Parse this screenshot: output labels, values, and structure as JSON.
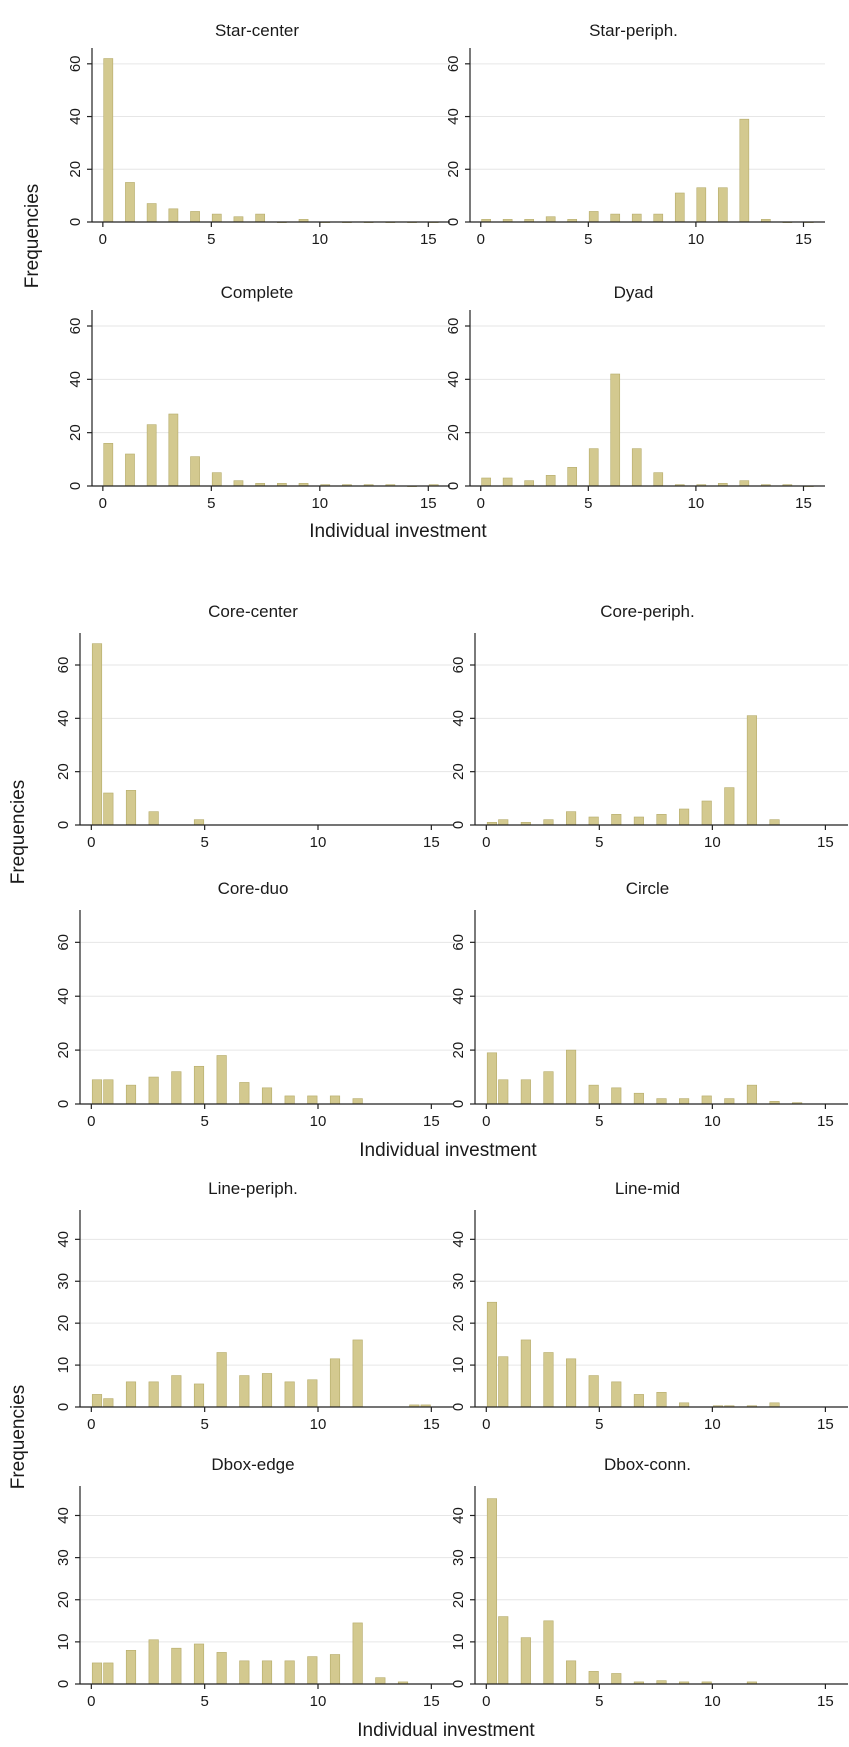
{
  "chart_data": [
    {
      "type": "bar",
      "ylabel": "Frequencies",
      "xlabel": "Individual investment",
      "xlim": [
        -0.5,
        16
      ],
      "xticks": [
        0,
        5,
        10,
        15
      ],
      "ylim": [
        0,
        66
      ],
      "yticks": [
        0,
        20,
        40,
        60
      ],
      "grid": true,
      "panels": [
        {
          "title": "Star-center",
          "x": [
            0,
            1,
            2,
            3,
            4,
            5,
            6,
            7,
            8,
            9,
            10,
            11,
            12,
            13,
            14,
            15
          ],
          "values": [
            62,
            15,
            7,
            5,
            4,
            3,
            2,
            3,
            0,
            1,
            0,
            0,
            0,
            0,
            0,
            0
          ]
        },
        {
          "title": "Star-periph.",
          "x": [
            0,
            1,
            2,
            3,
            4,
            5,
            6,
            7,
            8,
            9,
            10,
            11,
            12,
            13,
            14,
            15
          ],
          "values": [
            1,
            1,
            1,
            2,
            1,
            4,
            3,
            3,
            3,
            11,
            13,
            13,
            39,
            1,
            0,
            0
          ]
        },
        {
          "title": "Complete",
          "x": [
            0,
            1,
            2,
            3,
            4,
            5,
            6,
            7,
            8,
            9,
            10,
            11,
            12,
            13,
            14,
            15
          ],
          "values": [
            16,
            12,
            23,
            27,
            11,
            5,
            2,
            1,
            1,
            1,
            0.5,
            0.5,
            0.5,
            0.5,
            0,
            0.5
          ]
        },
        {
          "title": "Dyad",
          "x": [
            0,
            1,
            2,
            3,
            4,
            5,
            6,
            7,
            8,
            9,
            10,
            11,
            12,
            13,
            14,
            15
          ],
          "values": [
            3,
            3,
            2,
            4,
            7,
            14,
            42,
            14,
            5,
            0.5,
            0.5,
            1,
            2,
            0.5,
            0.5,
            0
          ]
        }
      ]
    },
    {
      "type": "bar",
      "ylabel": "Frequencies",
      "xlabel": "Individual investment",
      "xlim": [
        -0.5,
        16
      ],
      "xticks": [
        0,
        5,
        10,
        15
      ],
      "ylim": [
        0,
        72
      ],
      "yticks": [
        0,
        20,
        40,
        60
      ],
      "grid": true,
      "panels": [
        {
          "title": "Core-center",
          "x": [
            0,
            0.5,
            1.5,
            2.5,
            4.5
          ],
          "values": [
            68,
            12,
            13,
            5,
            2
          ]
        },
        {
          "title": "Core-periph.",
          "x": [
            0,
            0.5,
            1.5,
            2.5,
            3.5,
            4.5,
            5.5,
            6.5,
            7.5,
            8.5,
            9.5,
            10.5,
            11.5,
            12.5
          ],
          "values": [
            1,
            2,
            1,
            2,
            5,
            3,
            4,
            3,
            4,
            6,
            9,
            14,
            41,
            2
          ]
        },
        {
          "title": "Core-duo",
          "x": [
            0,
            0.5,
            1.5,
            2.5,
            3.5,
            4.5,
            5.5,
            6.5,
            7.5,
            8.5,
            9.5,
            10.5,
            11.5
          ],
          "values": [
            9,
            9,
            7,
            10,
            12,
            14,
            18,
            8,
            6,
            3,
            3,
            3,
            2
          ]
        },
        {
          "title": "Circle",
          "x": [
            0,
            0.5,
            1.5,
            2.5,
            3.5,
            4.5,
            5.5,
            6.5,
            7.5,
            8.5,
            9.5,
            10.5,
            11.5,
            12.5,
            13.5
          ],
          "values": [
            19,
            9,
            9,
            12,
            20,
            7,
            6,
            4,
            2,
            2,
            3,
            2,
            7,
            1,
            0.5
          ]
        }
      ]
    },
    {
      "type": "bar",
      "ylabel": "Frequencies",
      "xlabel": "Individual investment",
      "xlim": [
        -0.5,
        16
      ],
      "xticks": [
        0,
        5,
        10,
        15
      ],
      "ylim": [
        0,
        47
      ],
      "yticks": [
        0,
        10,
        20,
        30,
        40
      ],
      "grid": true,
      "panels": [
        {
          "title": "Line-periph.",
          "x": [
            0,
            0.5,
            1.5,
            2.5,
            3.5,
            4.5,
            5.5,
            6.5,
            7.5,
            8.5,
            9.5,
            10.5,
            11.5,
            14,
            14.5
          ],
          "values": [
            3,
            2,
            6,
            6,
            7.5,
            5.5,
            13,
            7.5,
            8,
            6,
            6.5,
            11.5,
            16,
            0.5,
            0.5
          ]
        },
        {
          "title": "Line-mid",
          "x": [
            0,
            0.5,
            1.5,
            2.5,
            3.5,
            4.5,
            5.5,
            6.5,
            7.5,
            8.5,
            10,
            10.5,
            11.5,
            12.5
          ],
          "values": [
            25,
            12,
            16,
            13,
            11.5,
            7.5,
            6,
            3,
            3.5,
            1,
            0.3,
            0.3,
            0.3,
            1
          ]
        },
        {
          "title": "Dbox-edge",
          "x": [
            0,
            0.5,
            1.5,
            2.5,
            3.5,
            4.5,
            5.5,
            6.5,
            7.5,
            8.5,
            9.5,
            10.5,
            11.5,
            12.5,
            13.5
          ],
          "values": [
            5,
            5,
            8,
            10.5,
            8.5,
            9.5,
            7.5,
            5.5,
            5.5,
            5.5,
            6.5,
            7,
            14.5,
            1.5,
            0.5
          ]
        },
        {
          "title": "Dbox-conn.",
          "x": [
            0,
            0.5,
            1.5,
            2.5,
            3.5,
            4.5,
            5.5,
            6.5,
            7.5,
            8.5,
            9.5,
            11.5
          ],
          "values": [
            44,
            16,
            11,
            15,
            5.5,
            3,
            2.5,
            0.5,
            0.8,
            0.5,
            0.5,
            0.5
          ]
        }
      ]
    }
  ]
}
